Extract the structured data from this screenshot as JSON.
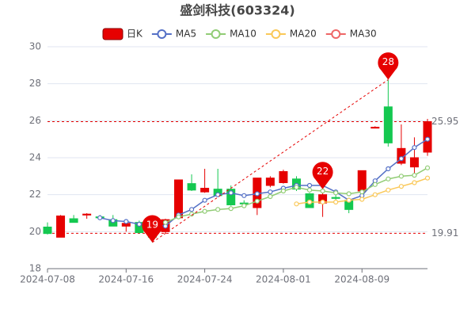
{
  "chart_data": {
    "type": "candlestick",
    "title": "盛剑科技(603324)",
    "categories": [
      "2024-07-08",
      null,
      null,
      null,
      null,
      null,
      "2024-07-16",
      null,
      null,
      null,
      null,
      null,
      "2024-07-24",
      null,
      null,
      null,
      null,
      null,
      "2024-08-01",
      null,
      null,
      null,
      null,
      null,
      "2024-08-09",
      null,
      null,
      null,
      null,
      null
    ],
    "candles": {
      "name": "日K",
      "up_color": "#e60000",
      "down_color": "#14c850",
      "open": [
        20.25,
        19.7,
        20.7,
        20.9,
        20.8,
        20.65,
        20.3,
        20.5,
        20.1,
        20.0,
        20.75,
        22.6,
        22.15,
        22.3,
        22.3,
        21.55,
        21.3,
        22.5,
        22.65,
        22.85,
        22.05,
        21.55,
        21.85,
        21.7,
        22.2,
        25.6,
        26.75,
        23.7,
        23.5,
        24.3
      ],
      "close": [
        19.9,
        20.85,
        20.5,
        20.95,
        20.75,
        20.3,
        20.45,
        19.95,
        19.7,
        20.65,
        22.8,
        22.25,
        22.35,
        21.95,
        21.45,
        21.5,
        22.9,
        22.9,
        23.25,
        22.3,
        21.3,
        22.0,
        21.8,
        21.2,
        23.3,
        25.65,
        24.8,
        24.5,
        24.0,
        25.95
      ],
      "high": [
        20.5,
        20.9,
        20.9,
        21.0,
        20.9,
        20.9,
        20.6,
        20.6,
        20.2,
        20.7,
        22.8,
        23.1,
        23.4,
        23.4,
        22.5,
        21.7,
        22.9,
        23.0,
        23.35,
        23.0,
        22.1,
        22.3,
        22.0,
        21.8,
        23.3,
        25.7,
        28.22,
        25.8,
        25.1,
        26.1
      ],
      "low": [
        19.85,
        19.7,
        20.5,
        20.7,
        20.7,
        20.3,
        20.0,
        19.9,
        19.42,
        19.9,
        20.7,
        22.2,
        22.1,
        21.9,
        21.4,
        21.4,
        20.9,
        22.4,
        22.6,
        22.2,
        21.3,
        20.8,
        21.6,
        21.0,
        22.1,
        25.6,
        24.6,
        23.6,
        23.1,
        24.1
      ]
    },
    "series": [
      {
        "name": "MA5",
        "color": "#5470c6",
        "values": [
          null,
          null,
          null,
          null,
          20.75,
          20.6,
          20.55,
          20.4,
          20.45,
          20.3,
          20.9,
          21.2,
          21.7,
          22.0,
          22.1,
          21.95,
          22.05,
          22.15,
          22.35,
          22.5,
          22.5,
          22.5,
          22.15,
          21.7,
          21.95,
          22.75,
          23.4,
          23.95,
          24.55,
          25.0
        ]
      },
      {
        "name": "MA10",
        "color": "#91cc75",
        "values": [
          null,
          null,
          null,
          null,
          null,
          null,
          null,
          null,
          null,
          20.5,
          20.8,
          20.95,
          21.1,
          21.2,
          21.25,
          21.4,
          21.65,
          21.9,
          22.2,
          22.4,
          22.25,
          22.2,
          22.1,
          22.05,
          22.15,
          22.55,
          22.85,
          23.0,
          23.05,
          23.45
        ]
      },
      {
        "name": "MA20",
        "color": "#fac858",
        "values": [
          null,
          null,
          null,
          null,
          null,
          null,
          null,
          null,
          null,
          null,
          null,
          null,
          null,
          null,
          null,
          null,
          null,
          null,
          null,
          21.5,
          21.6,
          21.6,
          21.6,
          21.7,
          21.75,
          22.0,
          22.25,
          22.45,
          22.65,
          22.9
        ]
      },
      {
        "name": "MA30",
        "color": "#ee6666",
        "values": [
          null,
          null,
          null,
          null,
          null,
          null,
          null,
          null,
          null,
          null,
          null,
          null,
          null,
          null,
          null,
          null,
          null,
          null,
          null,
          null,
          null,
          null,
          null,
          null,
          null,
          null,
          null,
          null,
          null,
          null
        ]
      }
    ],
    "mark_lines": [
      25.95,
      19.91
    ],
    "mark_points": [
      {
        "index": 8,
        "value": 19.42,
        "label": "19"
      },
      {
        "index": 21,
        "value": 22.3,
        "label": "22"
      },
      {
        "index": 26,
        "value": 28.22,
        "label": "28"
      }
    ],
    "ylim": [
      18,
      30
    ],
    "yticks": [
      18,
      20,
      22,
      24,
      26,
      28,
      30
    ],
    "grid": true
  }
}
